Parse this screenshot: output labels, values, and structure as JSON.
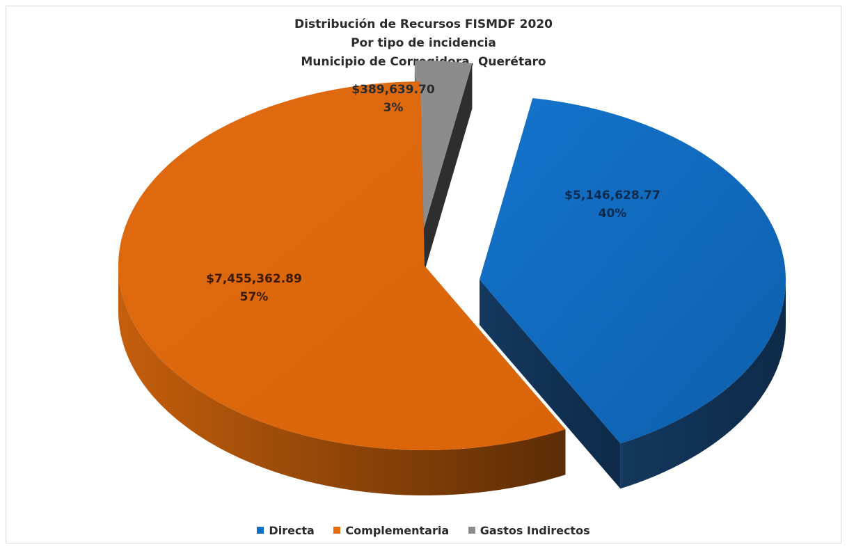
{
  "chart_data": {
    "type": "pie",
    "title": "Distribución de Recursos FISMDF 2020",
    "subtitle_lines": [
      "Por tipo de incidencia",
      "Municipio de Corregidora,  Querétaro"
    ],
    "slices": [
      {
        "name": "Directa",
        "value": 5146628.77,
        "value_label": "$5,146,628.77",
        "percent_label": "40%",
        "color": "#0f6fc6"
      },
      {
        "name": "Complementaria",
        "value": 7455362.89,
        "value_label": "$7,455,362.89",
        "percent_label": "57%",
        "color": "#e46c0a"
      },
      {
        "name": "Gastos Indirectos",
        "value": 389639.7,
        "value_label": "$389,639.70",
        "percent_label": "3%",
        "color": "#8c8c8c"
      }
    ],
    "legend_position": "bottom",
    "style": "3d-exploded"
  }
}
